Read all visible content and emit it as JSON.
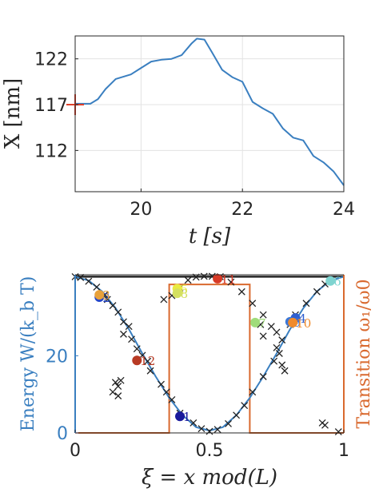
{
  "chart_data": [
    {
      "type": "line",
      "xlabel": "t [s]",
      "ylabel": "X [nm]",
      "xlim": [
        18.7,
        24
      ],
      "ylim": [
        107.5,
        124.5
      ],
      "xticks": [
        "20",
        "22",
        "24"
      ],
      "xtick_values": [
        20,
        22,
        24
      ],
      "yticks": [
        "112",
        "117",
        "122"
      ],
      "ytick_values": [
        112,
        117,
        122
      ],
      "grid": true,
      "colors": {
        "line": "#3a7fc0",
        "marker": "#e0402a",
        "axes": "#262626",
        "grid": "#e3e3e3"
      },
      "marker_point": {
        "x": 18.7,
        "y": 117
      },
      "series": [
        {
          "x": [
            18.7,
            19.0,
            19.15,
            19.3,
            19.5,
            19.8,
            20.0,
            20.2,
            20.4,
            20.6,
            20.8,
            21.0,
            21.1,
            21.25,
            21.4,
            21.6,
            21.8,
            22.0,
            22.2,
            22.4,
            22.6,
            22.8,
            23.0,
            23.2,
            23.4,
            23.6,
            23.8,
            24.0
          ],
          "y": [
            117.1,
            117.1,
            117.6,
            118.7,
            119.8,
            120.3,
            121.0,
            121.7,
            121.9,
            122.0,
            122.4,
            123.7,
            124.2,
            124.1,
            122.7,
            120.8,
            120.0,
            119.5,
            117.3,
            116.6,
            116.0,
            114.4,
            113.4,
            113.1,
            111.4,
            110.7,
            109.7,
            108.2
          ]
        }
      ]
    },
    {
      "type": "line",
      "xlabel": "ξ = x mod(L)",
      "ylabel": "Energy W/(k_b T)",
      "ylabel_right": "Transition ω₁/ω0",
      "xlim": [
        0,
        1
      ],
      "ylim": [
        0,
        41
      ],
      "xticks": [
        "0",
        "0.5",
        "1"
      ],
      "xtick_values": [
        0,
        0.5,
        1
      ],
      "yticks": [
        "0",
        "20"
      ],
      "ytick_values": [
        0,
        20
      ],
      "colors": {
        "energy": "#3a7fc0",
        "transition": "#d9692e",
        "scatter": "#222222",
        "axes": "#262626",
        "right_axis": "#d9692e"
      },
      "energy_curve": {
        "x": [
          0,
          0.05,
          0.1,
          0.15,
          0.2,
          0.25,
          0.3,
          0.35,
          0.4,
          0.45,
          0.5,
          0.55,
          0.6,
          0.65,
          0.7,
          0.75,
          0.8,
          0.85,
          0.9,
          0.95,
          1.0
        ],
        "y": [
          40.5,
          39.5,
          36.7,
          32.4,
          26.9,
          20.6,
          14.6,
          9.1,
          4.6,
          1.5,
          0.6,
          1.5,
          4.6,
          9.1,
          14.6,
          20.6,
          26.9,
          32.4,
          36.7,
          39.5,
          40.5
        ]
      },
      "transition_curve": {
        "x": [
          0,
          0.35,
          0.35,
          0.65,
          0.65,
          1.0
        ],
        "y": [
          0,
          0,
          38.5,
          38.5,
          0,
          0
        ]
      },
      "upper_line": {
        "y": 40.5
      },
      "scatter_x": [
        {
          "x": 0.0,
          "y": 40.5
        },
        {
          "x": 0.02,
          "y": 40.3
        },
        {
          "x": 0.05,
          "y": 39.3
        },
        {
          "x": 0.08,
          "y": 37.8
        },
        {
          "x": 0.11,
          "y": 35.8
        },
        {
          "x": 0.12,
          "y": 34.6
        },
        {
          "x": 0.14,
          "y": 33.0
        },
        {
          "x": 0.16,
          "y": 31.3
        },
        {
          "x": 0.18,
          "y": 28.8
        },
        {
          "x": 0.21,
          "y": 24.3
        },
        {
          "x": 0.23,
          "y": 21.8
        },
        {
          "x": 0.25,
          "y": 20.1
        },
        {
          "x": 0.27,
          "y": 18.6
        },
        {
          "x": 0.28,
          "y": 16.1
        },
        {
          "x": 0.32,
          "y": 12.6
        },
        {
          "x": 0.34,
          "y": 10.6
        },
        {
          "x": 0.36,
          "y": 8.6
        },
        {
          "x": 0.39,
          "y": 5.1
        },
        {
          "x": 0.44,
          "y": 2.6
        },
        {
          "x": 0.47,
          "y": 1.1
        },
        {
          "x": 0.5,
          "y": 0.4
        },
        {
          "x": 0.53,
          "y": 0.9
        },
        {
          "x": 0.57,
          "y": 2.4
        },
        {
          "x": 0.6,
          "y": 4.6
        },
        {
          "x": 0.63,
          "y": 7.1
        },
        {
          "x": 0.66,
          "y": 10.6
        },
        {
          "x": 0.7,
          "y": 14.6
        },
        {
          "x": 0.74,
          "y": 18.6
        },
        {
          "x": 0.77,
          "y": 24.1
        },
        {
          "x": 0.8,
          "y": 28.1
        },
        {
          "x": 0.82,
          "y": 30.6
        },
        {
          "x": 0.86,
          "y": 33.6
        },
        {
          "x": 0.9,
          "y": 36.6
        },
        {
          "x": 0.93,
          "y": 38.6
        },
        {
          "x": 0.95,
          "y": 39.6
        },
        {
          "x": 0.15,
          "y": 13.1
        },
        {
          "x": 0.16,
          "y": 12.1
        },
        {
          "x": 0.17,
          "y": 13.6
        },
        {
          "x": 0.14,
          "y": 10.6
        },
        {
          "x": 0.16,
          "y": 9.6
        },
        {
          "x": 0.18,
          "y": 25.6
        },
        {
          "x": 0.2,
          "y": 27.6
        },
        {
          "x": 0.33,
          "y": 34.6
        },
        {
          "x": 0.36,
          "y": 35.6
        },
        {
          "x": 0.39,
          "y": 37.6
        },
        {
          "x": 0.42,
          "y": 39.6
        },
        {
          "x": 0.45,
          "y": 40.4
        },
        {
          "x": 0.48,
          "y": 40.6
        },
        {
          "x": 0.51,
          "y": 40.6
        },
        {
          "x": 0.54,
          "y": 40.5
        },
        {
          "x": 0.58,
          "y": 39.1
        },
        {
          "x": 0.62,
          "y": 36.6
        },
        {
          "x": 0.66,
          "y": 33.6
        },
        {
          "x": 0.7,
          "y": 30.6
        },
        {
          "x": 0.73,
          "y": 27.6
        },
        {
          "x": 0.75,
          "y": 26.1
        },
        {
          "x": 0.7,
          "y": 25.1
        },
        {
          "x": 0.69,
          "y": 28.1
        },
        {
          "x": 0.75,
          "y": 22.1
        },
        {
          "x": 0.76,
          "y": 20.6
        },
        {
          "x": 0.77,
          "y": 17.6
        },
        {
          "x": 0.78,
          "y": 16.1
        },
        {
          "x": 0.92,
          "y": 2.6
        },
        {
          "x": 0.93,
          "y": 2.0
        },
        {
          "x": 0.98,
          "y": 0.3
        }
      ],
      "labeled_points": [
        {
          "label": "1",
          "x": 0.39,
          "y": 4.3,
          "color": "#1a1a9c"
        },
        {
          "label": "2",
          "x": 0.09,
          "y": 35.2,
          "color": "#2546c9"
        },
        {
          "label": "3",
          "x": 0.09,
          "y": 35.8,
          "color": "#e8a13a"
        },
        {
          "label": "4",
          "x": 0.82,
          "y": 29.8,
          "color": "#2f5fd0"
        },
        {
          "label": "5",
          "x": 0.38,
          "y": 37.4,
          "color": "#eaea40"
        },
        {
          "label": "6",
          "x": 0.95,
          "y": 39.4,
          "color": "#7ed4d0"
        },
        {
          "label": "7",
          "x": 0.67,
          "y": 28.6,
          "color": "#9fdc7a"
        },
        {
          "label": "8",
          "x": 0.38,
          "y": 36.2,
          "color": "#d4e060"
        },
        {
          "label": "9",
          "x": 0.8,
          "y": 28.8,
          "color": "#3d78d6"
        },
        {
          "label": "10",
          "x": 0.81,
          "y": 28.6,
          "color": "#f08a2a"
        },
        {
          "label": "11",
          "x": 0.53,
          "y": 40.0,
          "color": "#d83a26"
        },
        {
          "label": "12",
          "x": 0.23,
          "y": 18.8,
          "color": "#b83a24"
        }
      ]
    }
  ]
}
